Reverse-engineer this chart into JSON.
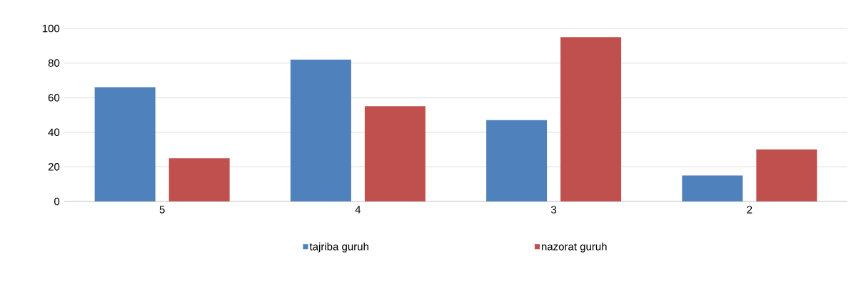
{
  "chart_data": {
    "type": "bar",
    "categories": [
      "5",
      "4",
      "3",
      "2"
    ],
    "series": [
      {
        "name": "tajriba guruh",
        "color": "#4f81bd",
        "values": [
          66,
          82,
          47,
          15
        ]
      },
      {
        "name": "nazorat guruh",
        "color": "#c0504d",
        "values": [
          25,
          55,
          95,
          30
        ]
      }
    ],
    "ylim": [
      0,
      100
    ],
    "yticks": [
      0,
      20,
      40,
      60,
      80,
      100
    ],
    "grid": "y",
    "legend": "bottom"
  }
}
